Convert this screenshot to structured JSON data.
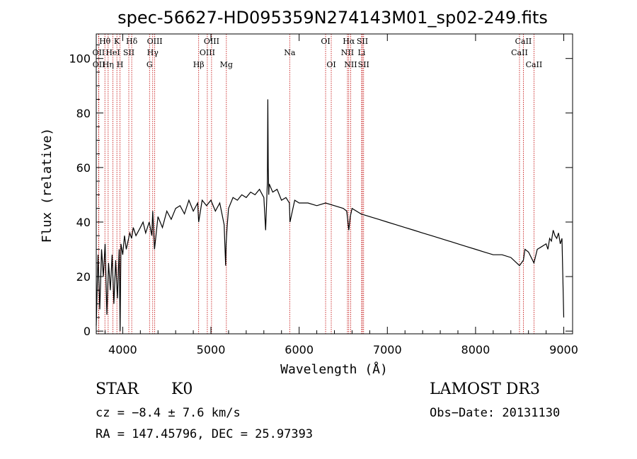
{
  "chart_data": {
    "type": "line",
    "title": "spec-56627-HD095359N274143M01_sp02-249.fits",
    "xlabel": "Wavelength (Å)",
    "ylabel": "Flux (relative)",
    "xlim": [
      3700,
      9100
    ],
    "ylim": [
      -1,
      109
    ],
    "xticks": [
      4000,
      5000,
      6000,
      7000,
      8000,
      9000
    ],
    "yticks": [
      0,
      20,
      40,
      60,
      80,
      100
    ],
    "series": [
      {
        "name": "spectrum",
        "x": [
          3700,
          3720,
          3740,
          3760,
          3780,
          3800,
          3820,
          3840,
          3860,
          3880,
          3900,
          3920,
          3940,
          3960,
          3970,
          3980,
          4000,
          4020,
          4040,
          4060,
          4080,
          4100,
          4120,
          4150,
          4200,
          4230,
          4260,
          4300,
          4330,
          4340,
          4360,
          4400,
          4450,
          4500,
          4550,
          4600,
          4650,
          4700,
          4750,
          4800,
          4850,
          4861,
          4900,
          4950,
          5000,
          5050,
          5100,
          5150,
          5167,
          5172,
          5183,
          5200,
          5250,
          5300,
          5350,
          5400,
          5450,
          5500,
          5550,
          5600,
          5620,
          5640,
          5645,
          5650,
          5655,
          5660,
          5700,
          5750,
          5800,
          5850,
          5890,
          5896,
          5950,
          6000,
          6100,
          6200,
          6300,
          6400,
          6500,
          6540,
          6563,
          6580,
          6600,
          6700,
          6800,
          6900,
          7000,
          7100,
          7200,
          7300,
          7400,
          7500,
          7600,
          7700,
          7800,
          7900,
          8000,
          8100,
          8200,
          8300,
          8400,
          8498,
          8542,
          8560,
          8600,
          8662,
          8700,
          8750,
          8800,
          8820,
          8840,
          8860,
          8880,
          8900,
          8920,
          8940,
          8960,
          8980,
          9000
        ],
        "values": [
          2,
          28,
          8,
          30,
          20,
          32,
          6,
          25,
          15,
          28,
          10,
          26,
          12,
          30,
          0,
          32,
          28,
          35,
          30,
          33,
          36,
          34,
          38,
          35,
          38,
          40,
          36,
          40,
          35,
          44,
          30,
          42,
          38,
          44,
          41,
          45,
          46,
          43,
          48,
          44,
          47,
          40,
          48,
          46,
          48,
          44,
          47,
          39,
          24,
          32,
          38,
          45,
          49,
          48,
          50,
          49,
          51,
          50,
          52,
          49,
          37,
          55,
          85,
          60,
          50,
          54,
          51,
          52,
          48,
          49,
          47,
          40,
          48,
          47,
          47,
          46,
          47,
          46,
          45,
          44,
          37,
          42,
          45,
          43,
          42,
          41,
          40,
          39,
          38,
          37,
          36,
          35,
          34,
          33,
          32,
          31,
          30,
          29,
          28,
          28,
          27,
          24,
          26,
          30,
          29,
          25,
          30,
          31,
          32,
          30,
          34,
          33,
          37,
          35,
          34,
          36,
          32,
          34,
          5
        ]
      }
    ],
    "lines": [
      {
        "label": "Hθ",
        "x": 3798,
        "row": 1
      },
      {
        "label": "OII",
        "x": 3727,
        "row": 2
      },
      {
        "label": "OII",
        "x": 3729,
        "row": 3
      },
      {
        "label": "Hη",
        "x": 3835,
        "row": 3
      },
      {
        "label": "HeI",
        "x": 3889,
        "row": 2
      },
      {
        "label": "K",
        "x": 3934,
        "row": 1
      },
      {
        "label": "H",
        "x": 3969,
        "row": 3
      },
      {
        "label": "SII",
        "x": 4069,
        "row": 2
      },
      {
        "label": "Hδ",
        "x": 4102,
        "row": 1
      },
      {
        "label": "OIII",
        "x": 4363,
        "row": 1
      },
      {
        "label": "Hγ",
        "x": 4340,
        "row": 2
      },
      {
        "label": "G",
        "x": 4304,
        "row": 3
      },
      {
        "label": "Hβ",
        "x": 4861,
        "row": 3
      },
      {
        "label": "OIII",
        "x": 5007,
        "row": 1
      },
      {
        "label": "OIII",
        "x": 4959,
        "row": 2
      },
      {
        "label": "Mg",
        "x": 5175,
        "row": 3
      },
      {
        "label": "Na",
        "x": 5893,
        "row": 2
      },
      {
        "label": "OI",
        "x": 6300,
        "row": 1
      },
      {
        "label": "OI",
        "x": 6364,
        "row": 3
      },
      {
        "label": "Hα",
        "x": 6563,
        "row": 1
      },
      {
        "label": "NII",
        "x": 6548,
        "row": 2
      },
      {
        "label": "NII",
        "x": 6584,
        "row": 3
      },
      {
        "label": "SII",
        "x": 6717,
        "row": 1
      },
      {
        "label": "Li",
        "x": 6708,
        "row": 2
      },
      {
        "label": "SII",
        "x": 6731,
        "row": 3
      },
      {
        "label": "CaII",
        "x": 8542,
        "row": 1
      },
      {
        "label": "CaII",
        "x": 8498,
        "row": 2
      },
      {
        "label": "CaII",
        "x": 8662,
        "row": 3
      }
    ]
  },
  "footer": {
    "class": "STAR",
    "subclass": "K0",
    "survey": "LAMOST DR3",
    "cz": "cz = −8.4 ± 7.6 km/s",
    "obs_date": "Obs−Date: 20131130",
    "coords": "RA = 147.45796, DEC =  25.97393"
  }
}
